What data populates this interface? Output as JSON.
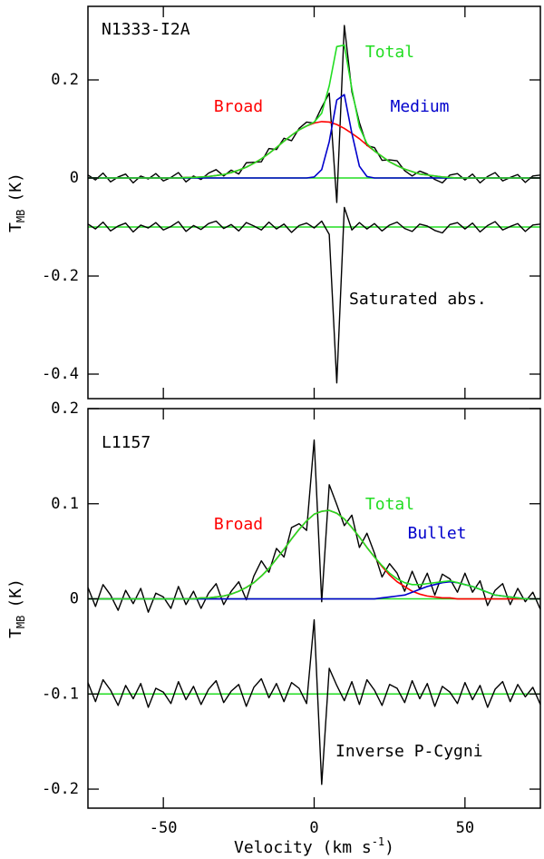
{
  "chart_data": [
    {
      "type": "line",
      "title": "N1333-I2A",
      "annotation": "Saturated abs.",
      "ylabel": {
        "text": "T",
        "sub": "MB",
        "unit": "(K)"
      },
      "xlim": [
        -75,
        75
      ],
      "xticks": [
        -50,
        0,
        50
      ],
      "xtick_labels": false,
      "ylim": [
        -0.45,
        0.35
      ],
      "yticks": [
        -0.4,
        -0.2,
        0,
        0.2
      ],
      "baselines": [
        0,
        -0.1
      ],
      "baseline_color": "#22dd22",
      "x": [
        -75,
        -72.5,
        -70,
        -67.5,
        -65,
        -62.5,
        -60,
        -57.5,
        -55,
        -52.5,
        -50,
        -47.5,
        -45,
        -42.5,
        -40,
        -37.5,
        -35,
        -32.5,
        -30,
        -27.5,
        -25,
        -22.5,
        -20,
        -17.5,
        -15,
        -12.5,
        -10,
        -7.5,
        -5,
        -2.5,
        0,
        2.5,
        5,
        7.5,
        10,
        12.5,
        15,
        17.5,
        20,
        22.5,
        25,
        27.5,
        30,
        32.5,
        35,
        37.5,
        40,
        42.5,
        45,
        47.5,
        50,
        52.5,
        55,
        57.5,
        60,
        62.5,
        65,
        67.5,
        70,
        72.5,
        75
      ],
      "series": [
        {
          "color": "#000000",
          "values": [
            0.006,
            -0.004,
            0.01,
            -0.008,
            0.002,
            0.008,
            -0.01,
            0.004,
            -0.002,
            0.009,
            -0.006,
            0.001,
            0.011,
            -0.008,
            0.004,
            -0.003,
            0.01,
            0.017,
            0.004,
            0.016,
            0.008,
            0.031,
            0.032,
            0.033,
            0.06,
            0.058,
            0.081,
            0.076,
            0.101,
            0.114,
            0.112,
            0.144,
            0.173,
            -0.05,
            0.311,
            0.176,
            0.113,
            0.066,
            0.062,
            0.036,
            0.037,
            0.035,
            0.015,
            0.004,
            0.014,
            0.008,
            -0.003,
            -0.01,
            0.006,
            0.009,
            -0.004,
            0.008,
            -0.01,
            0.003,
            0.011,
            -0.006,
            0.001,
            0.007,
            -0.009,
            0.004,
            0.006
          ]
        },
        {
          "color": "#000000",
          "values": [
            -0.094,
            -0.104,
            -0.09,
            -0.108,
            -0.098,
            -0.092,
            -0.11,
            -0.096,
            -0.102,
            -0.091,
            -0.106,
            -0.099,
            -0.089,
            -0.109,
            -0.097,
            -0.105,
            -0.093,
            -0.088,
            -0.103,
            -0.095,
            -0.108,
            -0.091,
            -0.098,
            -0.106,
            -0.09,
            -0.104,
            -0.094,
            -0.111,
            -0.097,
            -0.092,
            -0.102,
            -0.088,
            -0.115,
            -0.418,
            -0.06,
            -0.106,
            -0.091,
            -0.104,
            -0.093,
            -0.108,
            -0.096,
            -0.09,
            -0.103,
            -0.109,
            -0.094,
            -0.098,
            -0.107,
            -0.112,
            -0.095,
            -0.091,
            -0.104,
            -0.092,
            -0.11,
            -0.097,
            -0.089,
            -0.106,
            -0.099,
            -0.093,
            -0.109,
            -0.096,
            -0.094
          ]
        },
        {
          "name": "Broad",
          "color": "#ff0000",
          "values": [
            0,
            0,
            0,
            0,
            0,
            0,
            0,
            0,
            0,
            0,
            0,
            0,
            0,
            0.001,
            0.001,
            0.002,
            0.003,
            0.005,
            0.007,
            0.011,
            0.016,
            0.022,
            0.03,
            0.039,
            0.05,
            0.062,
            0.075,
            0.087,
            0.098,
            0.106,
            0.112,
            0.115,
            0.114,
            0.109,
            0.101,
            0.091,
            0.08,
            0.067,
            0.055,
            0.044,
            0.033,
            0.025,
            0.018,
            0.013,
            0.008,
            0.006,
            0.004,
            0.002,
            0.001,
            0,
            0,
            0,
            0,
            0,
            0,
            0,
            0,
            0,
            0,
            0,
            0
          ]
        },
        {
          "name": "Medium",
          "color": "#0000cc",
          "values": [
            0,
            0,
            0,
            0,
            0,
            0,
            0,
            0,
            0,
            0,
            0,
            0,
            0,
            0,
            0,
            0,
            0,
            0,
            0,
            0,
            0,
            0,
            0,
            0,
            0,
            0,
            0,
            0,
            0,
            0,
            0.002,
            0.017,
            0.074,
            0.159,
            0.17,
            0.091,
            0.024,
            0.003,
            0,
            0,
            0,
            0,
            0,
            0,
            0,
            0,
            0,
            0,
            0,
            0,
            0,
            0,
            0,
            0,
            0,
            0,
            0,
            0,
            0,
            0,
            0
          ]
        },
        {
          "name": "Total",
          "color": "#22dd22",
          "values": [
            0,
            0,
            0,
            0,
            0,
            0,
            0,
            0,
            0,
            0,
            0,
            0,
            0,
            0.001,
            0.001,
            0.002,
            0.003,
            0.005,
            0.007,
            0.011,
            0.016,
            0.022,
            0.03,
            0.039,
            0.05,
            0.062,
            0.075,
            0.087,
            0.098,
            0.106,
            0.114,
            0.132,
            0.188,
            0.268,
            0.271,
            0.182,
            0.104,
            0.07,
            0.055,
            0.044,
            0.033,
            0.025,
            0.018,
            0.013,
            0.008,
            0.006,
            0.004,
            0.002,
            0.001,
            0,
            0,
            0,
            0,
            0,
            0,
            0,
            0,
            0,
            0,
            0,
            0
          ]
        }
      ]
    },
    {
      "type": "line",
      "title": "L1157",
      "annotation": "Inverse P-Cygni",
      "ylabel": {
        "text": "T",
        "sub": "MB",
        "unit": "(K)"
      },
      "xlabel": {
        "text": "Velocity (km s",
        "sup": "-1",
        "end": ")"
      },
      "xlim": [
        -75,
        75
      ],
      "xticks": [
        -50,
        0,
        50
      ],
      "xtick_labels": true,
      "ylim": [
        -0.22,
        0.2
      ],
      "yticks": [
        -0.2,
        -0.1,
        0,
        0.1,
        0.2
      ],
      "baselines": [
        0,
        -0.1
      ],
      "baseline_color": "#22dd22",
      "x": [
        -75,
        -72.5,
        -70,
        -67.5,
        -65,
        -62.5,
        -60,
        -57.5,
        -55,
        -52.5,
        -50,
        -47.5,
        -45,
        -42.5,
        -40,
        -37.5,
        -35,
        -32.5,
        -30,
        -27.5,
        -25,
        -22.5,
        -20,
        -17.5,
        -15,
        -12.5,
        -10,
        -7.5,
        -5,
        -2.5,
        0,
        2.5,
        5,
        7.5,
        10,
        12.5,
        15,
        17.5,
        20,
        22.5,
        25,
        27.5,
        30,
        32.5,
        35,
        37.5,
        40,
        42.5,
        45,
        47.5,
        50,
        52.5,
        55,
        57.5,
        60,
        62.5,
        65,
        67.5,
        70,
        72.5,
        75
      ],
      "series": [
        {
          "color": "#000000",
          "values": [
            0.012,
            -0.008,
            0.015,
            0.004,
            -0.012,
            0.009,
            -0.005,
            0.011,
            -0.014,
            0.006,
            0.002,
            -0.01,
            0.013,
            -0.006,
            0.008,
            -0.01,
            0.006,
            0.016,
            -0.006,
            0.008,
            0.018,
            -0.001,
            0.024,
            0.04,
            0.028,
            0.053,
            0.044,
            0.075,
            0.079,
            0.072,
            0.167,
            -0.003,
            0.12,
            0.099,
            0.077,
            0.088,
            0.054,
            0.069,
            0.048,
            0.023,
            0.037,
            0.027,
            0.008,
            0.029,
            0.01,
            0.027,
            0.004,
            0.026,
            0.021,
            0.007,
            0.027,
            0.007,
            0.019,
            -0.007,
            0.009,
            0.016,
            -0.006,
            0.011,
            -0.003,
            0.007,
            -0.011
          ]
        },
        {
          "color": "#000000",
          "values": [
            -0.088,
            -0.108,
            -0.085,
            -0.096,
            -0.112,
            -0.091,
            -0.105,
            -0.089,
            -0.114,
            -0.094,
            -0.098,
            -0.11,
            -0.087,
            -0.106,
            -0.092,
            -0.111,
            -0.095,
            -0.086,
            -0.109,
            -0.097,
            -0.09,
            -0.113,
            -0.093,
            -0.084,
            -0.104,
            -0.089,
            -0.108,
            -0.088,
            -0.094,
            -0.11,
            -0.022,
            -0.195,
            -0.073,
            -0.091,
            -0.107,
            -0.087,
            -0.111,
            -0.085,
            -0.096,
            -0.112,
            -0.09,
            -0.094,
            -0.109,
            -0.086,
            -0.105,
            -0.089,
            -0.113,
            -0.092,
            -0.098,
            -0.11,
            -0.088,
            -0.106,
            -0.091,
            -0.114,
            -0.095,
            -0.087,
            -0.108,
            -0.09,
            -0.103,
            -0.093,
            -0.111
          ]
        },
        {
          "name": "Broad",
          "color": "#ff0000",
          "values": [
            0,
            0,
            0,
            0,
            0,
            0,
            0,
            0,
            0,
            0,
            0,
            0,
            0,
            0,
            0,
            0.001,
            0.001,
            0.002,
            0.003,
            0.005,
            0.008,
            0.012,
            0.017,
            0.024,
            0.032,
            0.042,
            0.052,
            0.063,
            0.073,
            0.082,
            0.089,
            0.092,
            0.093,
            0.09,
            0.084,
            0.075,
            0.065,
            0.054,
            0.044,
            0.034,
            0.025,
            0.018,
            0.013,
            0.008,
            0.005,
            0.003,
            0.002,
            0.001,
            0.001,
            0,
            0,
            0,
            0,
            0,
            0,
            0,
            0,
            0,
            0,
            0,
            0
          ]
        },
        {
          "name": "Bullet",
          "color": "#0000cc",
          "values": [
            0,
            0,
            0,
            0,
            0,
            0,
            0,
            0,
            0,
            0,
            0,
            0,
            0,
            0,
            0,
            0,
            0,
            0,
            0,
            0,
            0,
            0,
            0,
            0,
            0,
            0,
            0,
            0,
            0,
            0,
            0,
            0,
            0,
            0,
            0,
            0,
            0,
            0,
            0,
            0.001,
            0.002,
            0.003,
            0.004,
            0.007,
            0.01,
            0.013,
            0.015,
            0.017,
            0.018,
            0.017,
            0.015,
            0.013,
            0.01,
            0.007,
            0.004,
            0.003,
            0.002,
            0.001,
            0,
            0,
            0
          ]
        },
        {
          "name": "Total",
          "color": "#22dd22",
          "values": [
            0,
            0,
            0,
            0,
            0,
            0,
            0,
            0,
            0,
            0,
            0,
            0,
            0,
            0,
            0,
            0.001,
            0.001,
            0.002,
            0.003,
            0.005,
            0.008,
            0.012,
            0.017,
            0.024,
            0.032,
            0.042,
            0.052,
            0.063,
            0.073,
            0.082,
            0.089,
            0.092,
            0.093,
            0.09,
            0.084,
            0.075,
            0.065,
            0.054,
            0.044,
            0.035,
            0.027,
            0.021,
            0.017,
            0.015,
            0.015,
            0.016,
            0.017,
            0.018,
            0.019,
            0.017,
            0.015,
            0.013,
            0.01,
            0.007,
            0.004,
            0.003,
            0.002,
            0.001,
            0,
            0,
            0
          ]
        }
      ]
    }
  ]
}
